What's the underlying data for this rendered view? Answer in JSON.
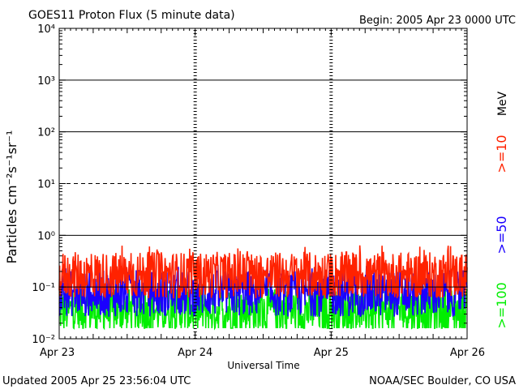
{
  "header": {
    "title": "GOES11 Proton Flux (5 minute data)",
    "begin": "Begin: 2005 Apr 23 0000 UTC"
  },
  "footer": {
    "updated": "Updated 2005 Apr 25 23:56:04 UTC",
    "credit": "NOAA/SEC Boulder, CO USA"
  },
  "colors": {
    "ge10": "#ff2200",
    "ge50": "#1a00ff",
    "ge100": "#00ee00",
    "axis": "#000000"
  },
  "chart_data": {
    "type": "line",
    "title": "GOES11 Proton Flux (5 minute data)",
    "xlabel": "Universal Time",
    "ylabel": "Particles cm⁻²s⁻¹sr⁻¹",
    "yscale": "log",
    "ylim": [
      0.01,
      10000
    ],
    "xlim_days": [
      0,
      3
    ],
    "x_tick_labels": [
      "Apr 23",
      "Apr 24",
      "Apr 25",
      "Apr 26"
    ],
    "y_tick_labels": [
      "10⁻²",
      "10⁻¹",
      "10⁰",
      "10¹",
      "10²",
      "10³",
      "10⁴"
    ],
    "y_ticks": [
      0.01,
      0.1,
      1,
      10,
      100,
      1000,
      10000
    ],
    "threshold_lines": [
      {
        "value": 10,
        "style": "dashed"
      },
      {
        "value": 100,
        "style": "solid"
      },
      {
        "value": 1000,
        "style": "solid"
      },
      {
        "value": 1,
        "style": "solid"
      },
      {
        "value": 0.1,
        "style": "solid"
      }
    ],
    "day_markers": [
      "Apr 24",
      "Apr 25"
    ],
    "unit_label": "MeV",
    "grid": false,
    "series": [
      {
        "name": ">=10",
        "color": "#ff2200",
        "level": 0.17,
        "spread": 0.45,
        "spike_max": 1.2
      },
      {
        "name": ">=50",
        "color": "#1a00ff",
        "level": 0.075,
        "spread": 0.45,
        "spike_max": 0.3
      },
      {
        "name": ">=100",
        "color": "#00ee00",
        "level": 0.035,
        "spread": 0.45,
        "spike_max": 0.09
      }
    ]
  }
}
